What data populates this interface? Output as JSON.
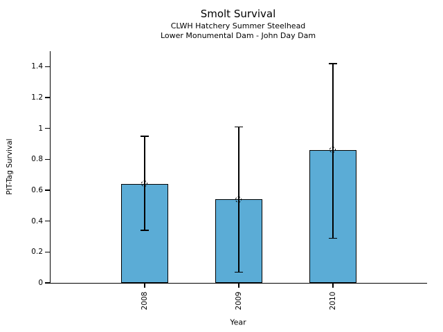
{
  "chart_data": {
    "type": "bar",
    "title": "Smolt Survival",
    "subtitle1": "CLWH Hatchery Summer Steelhead",
    "subtitle2": "Lower Monumental Dam - John Day Dam",
    "xlabel": "Year",
    "ylabel": "PIT-Tag Survival",
    "categories": [
      "2008",
      "2009",
      "2010"
    ],
    "values": [
      0.64,
      0.54,
      0.86
    ],
    "error_low": [
      0.34,
      0.07,
      0.29
    ],
    "error_high": [
      0.95,
      1.01,
      1.42
    ],
    "marker": "open-circle-dashed",
    "ylim": [
      0,
      1.5
    ],
    "ytick_values": [
      0,
      0.2,
      0.4,
      0.6,
      0.8,
      1.0,
      1.2,
      1.4
    ],
    "ytick_labels": [
      "0",
      "0.2",
      "0.4",
      "0.6",
      "0.8",
      "1",
      "1.2",
      "1.4"
    ],
    "bar_color": "#5BACD6",
    "edge_color": "#000000",
    "grid": false,
    "legend": false
  }
}
